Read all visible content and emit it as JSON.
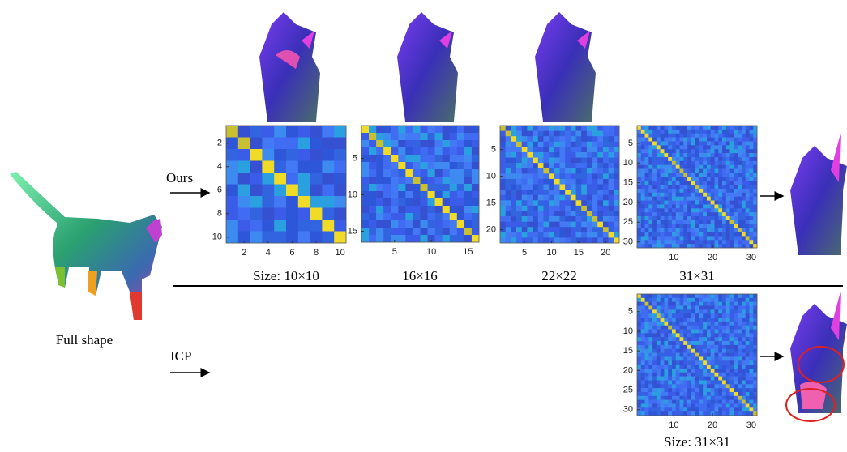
{
  "labels": {
    "ours": "Ours",
    "icp": "ICP",
    "full_shape": "Full shape"
  },
  "matrices": [
    {
      "caption": "Size: 10×10",
      "yticks": [
        2,
        4,
        6,
        8,
        10
      ],
      "xticks": [
        2,
        4,
        6,
        8,
        10
      ]
    },
    {
      "caption": "16×16",
      "yticks": [
        5,
        10,
        15
      ],
      "xticks": [
        5,
        10,
        15
      ]
    },
    {
      "caption": "22×22",
      "yticks": [
        5,
        10,
        15,
        20
      ],
      "xticks": [
        5,
        10,
        15,
        20
      ]
    },
    {
      "caption": "31×31",
      "yticks": [
        5,
        10,
        15,
        20,
        25,
        30
      ],
      "xticks": [
        10,
        20,
        30
      ]
    },
    {
      "caption": "Size: 31×31",
      "yticks": [
        5,
        10,
        15,
        20,
        25,
        30
      ],
      "xticks": [
        10,
        20,
        30
      ]
    }
  ]
}
